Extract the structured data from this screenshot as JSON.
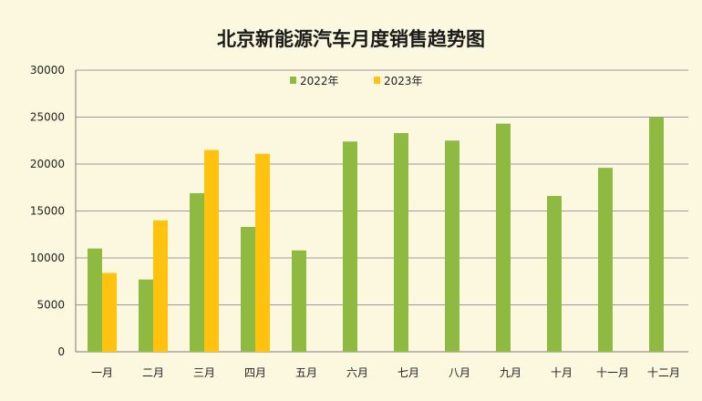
{
  "chart_data": {
    "type": "bar",
    "title": "北京新能源汽车月度销售趋势图",
    "categories": [
      "一月",
      "二月",
      "三月",
      "四月",
      "五月",
      "六月",
      "七月",
      "八月",
      "九月",
      "十月",
      "十一月",
      "十二月"
    ],
    "series": [
      {
        "name": "2022年",
        "color": "#8fba42",
        "values": [
          11000,
          7700,
          16900,
          13300,
          10800,
          22400,
          23300,
          22500,
          24300,
          16600,
          19600,
          25000
        ]
      },
      {
        "name": "2023年",
        "color": "#ffc20e",
        "values": [
          8400,
          14000,
          21500,
          21100,
          null,
          null,
          null,
          null,
          null,
          null,
          null,
          null
        ]
      }
    ],
    "ylim": [
      0,
      30000
    ],
    "yticks": [
      0,
      5000,
      10000,
      15000,
      20000,
      25000,
      30000
    ],
    "grid": true,
    "legend_position": "top-center"
  }
}
